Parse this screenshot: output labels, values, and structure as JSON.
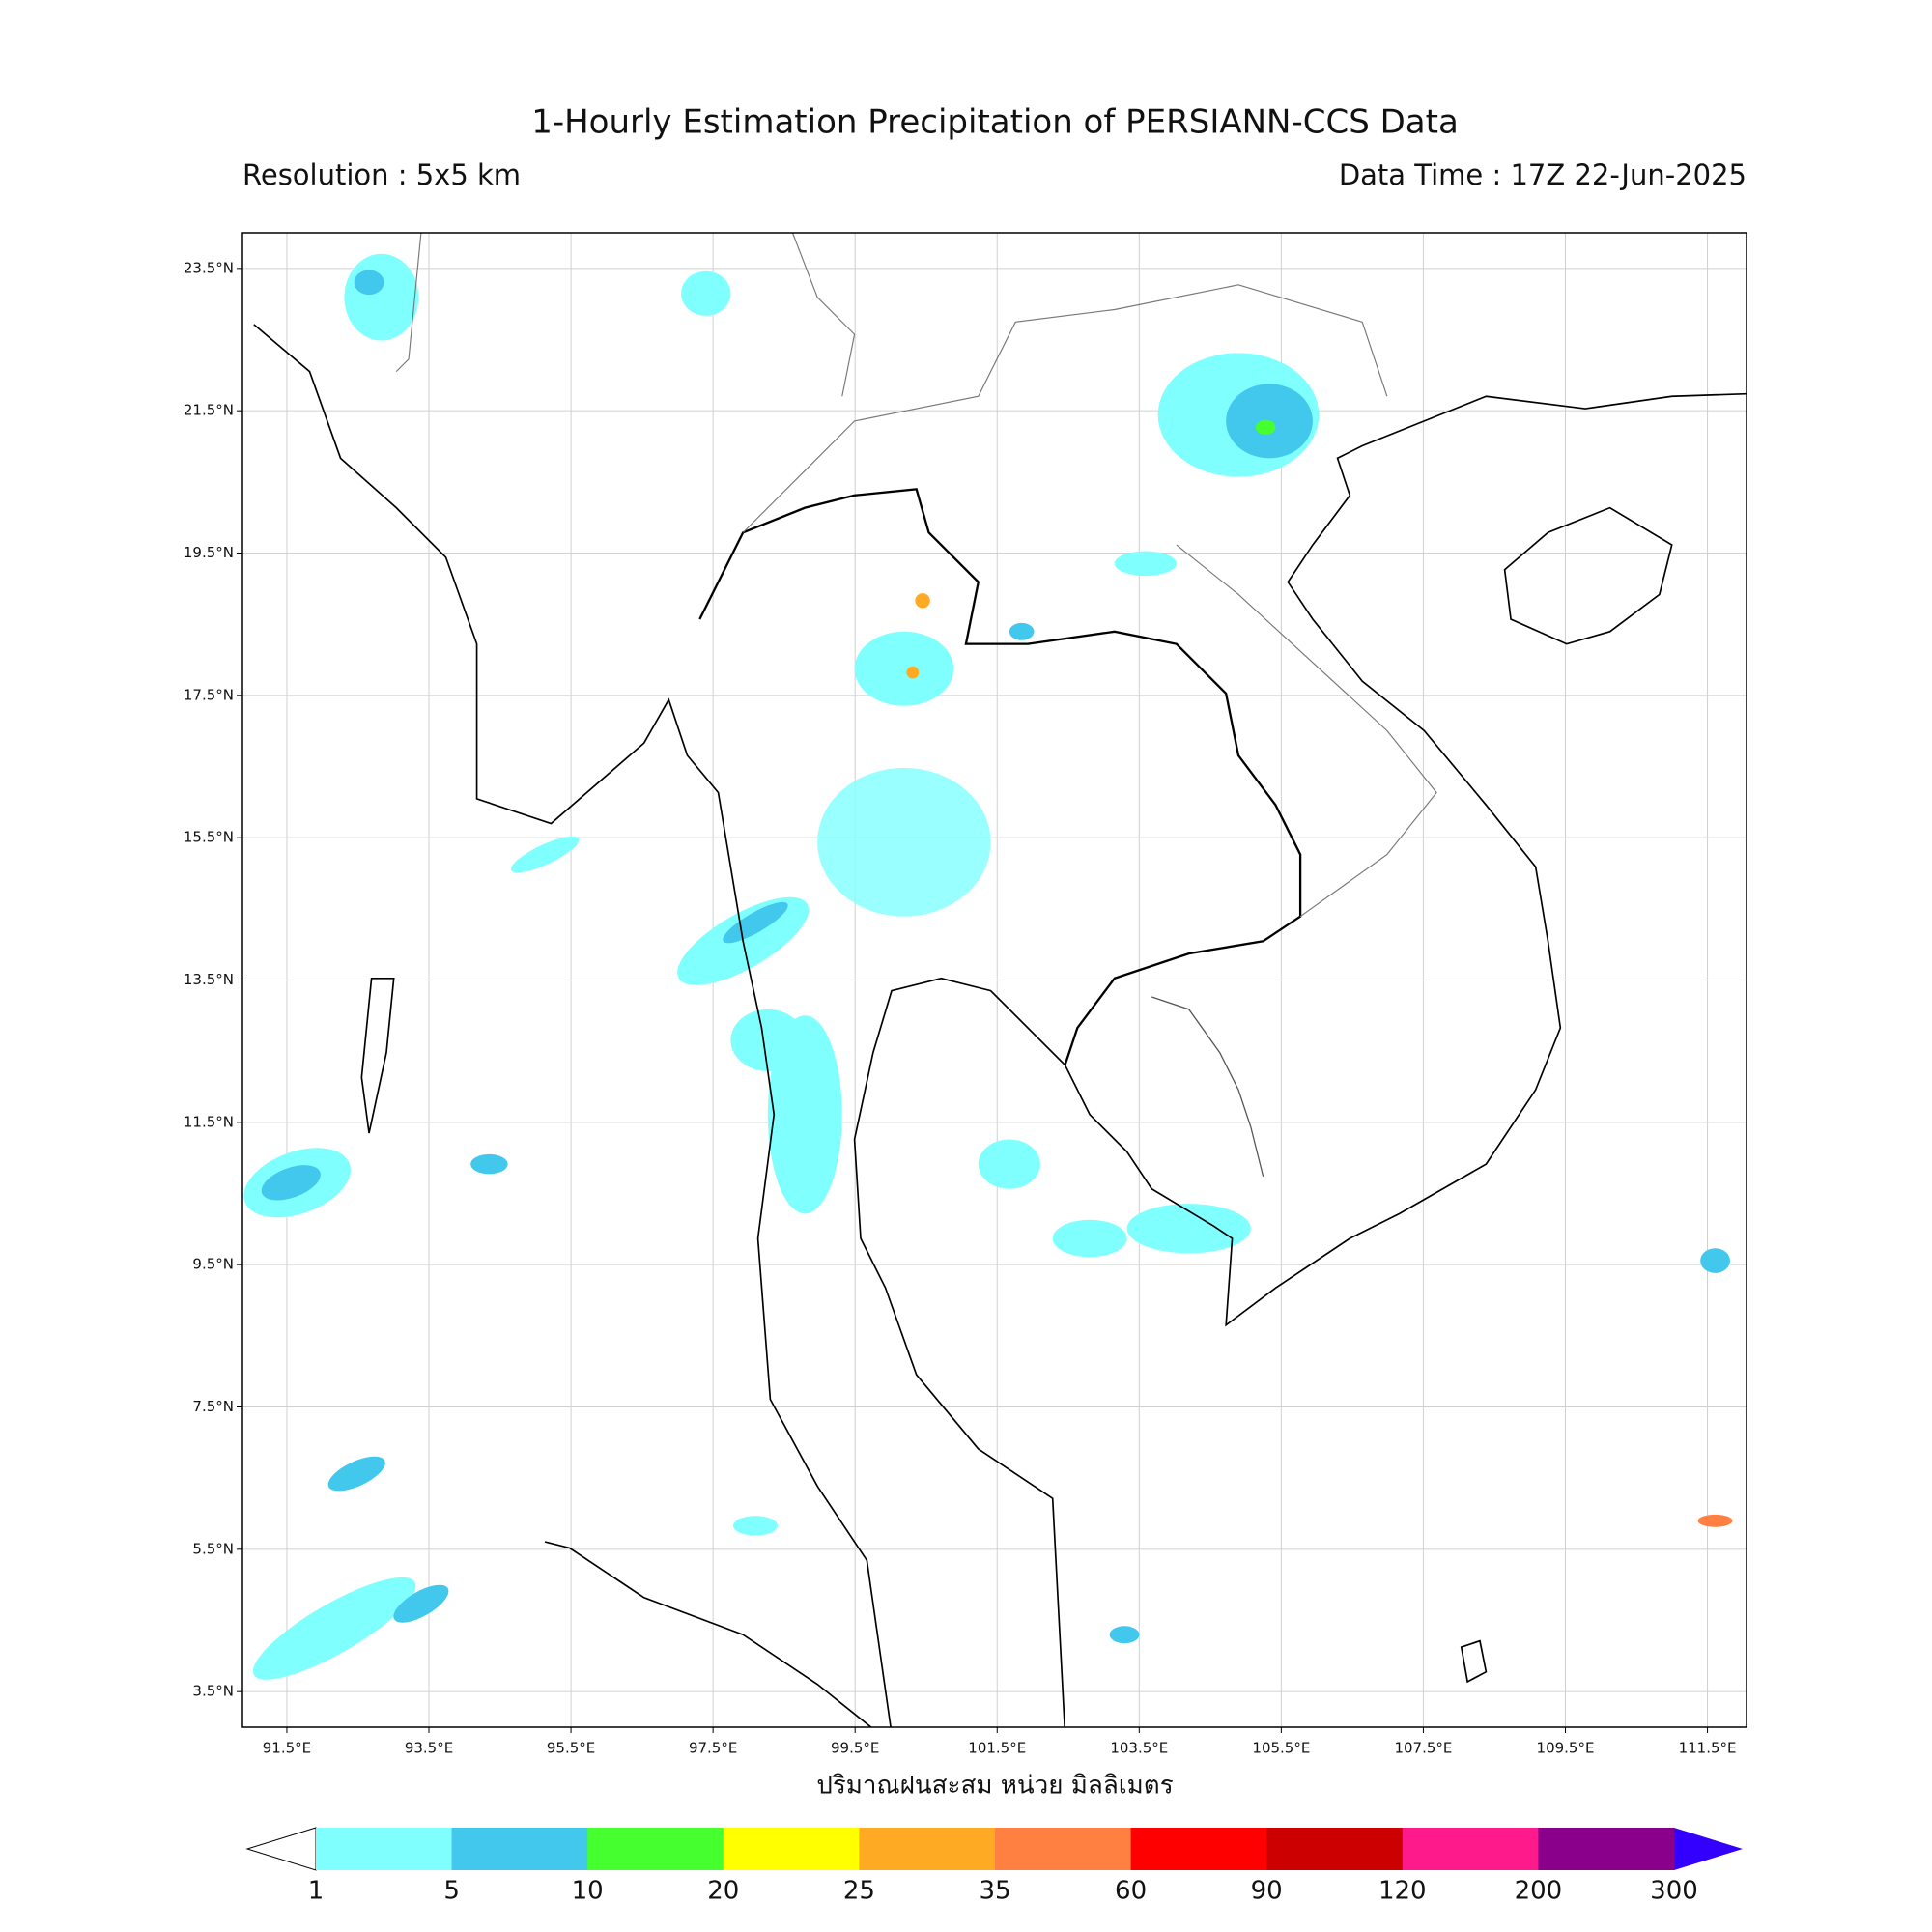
{
  "title": "1-Hourly Estimation Precipitation of PERSIANN-CCS Data",
  "subtitle_left": "Resolution : 5x5 km",
  "subtitle_right": "Data Time : 17Z 22-Jun-2025",
  "map": {
    "xlim": [
      90.875,
      112.05
    ],
    "ylim": [
      3.0,
      24.0
    ],
    "grid": true,
    "xticks": [
      {
        "value": 91.5,
        "label": "91.5°E"
      },
      {
        "value": 93.5,
        "label": "93.5°E"
      },
      {
        "value": 95.5,
        "label": "95.5°E"
      },
      {
        "value": 97.5,
        "label": "97.5°E"
      },
      {
        "value": 99.5,
        "label": "99.5°E"
      },
      {
        "value": 101.5,
        "label": "101.5°E"
      },
      {
        "value": 103.5,
        "label": "103.5°E"
      },
      {
        "value": 105.5,
        "label": "105.5°E"
      },
      {
        "value": 107.5,
        "label": "107.5°E"
      },
      {
        "value": 109.5,
        "label": "109.5°E"
      },
      {
        "value": 111.5,
        "label": "111.5°E"
      }
    ],
    "yticks": [
      {
        "value": 23.5,
        "label": "23.5°N"
      },
      {
        "value": 21.5,
        "label": "21.5°N"
      },
      {
        "value": 19.5,
        "label": "19.5°N"
      },
      {
        "value": 17.5,
        "label": "17.5°N"
      },
      {
        "value": 15.5,
        "label": "15.5°N"
      },
      {
        "value": 13.5,
        "label": "13.5°N"
      },
      {
        "value": 11.5,
        "label": "11.5°N"
      },
      {
        "value": 9.5,
        "label": "9.5°N"
      },
      {
        "value": 7.5,
        "label": "7.5°N"
      },
      {
        "value": 5.5,
        "label": "5.5°N"
      },
      {
        "value": 3.5,
        "label": "3.5°N"
      }
    ]
  },
  "colorbar": {
    "label": "ปริมาณฝนสะสม หน่วย มิลลิเมตร",
    "levels": [
      1,
      5,
      10,
      20,
      25,
      35,
      60,
      90,
      120,
      200,
      300
    ],
    "colors": [
      "#80ffff",
      "#41c8ec",
      "#46ff2e",
      "#ffff00",
      "#ffaa22",
      "#ff8040",
      "#ff0000",
      "#cc0000",
      "#ff1a8c",
      "#8b008b"
    ],
    "under_color": "#ffffff",
    "over_color": "#3300ff"
  }
}
